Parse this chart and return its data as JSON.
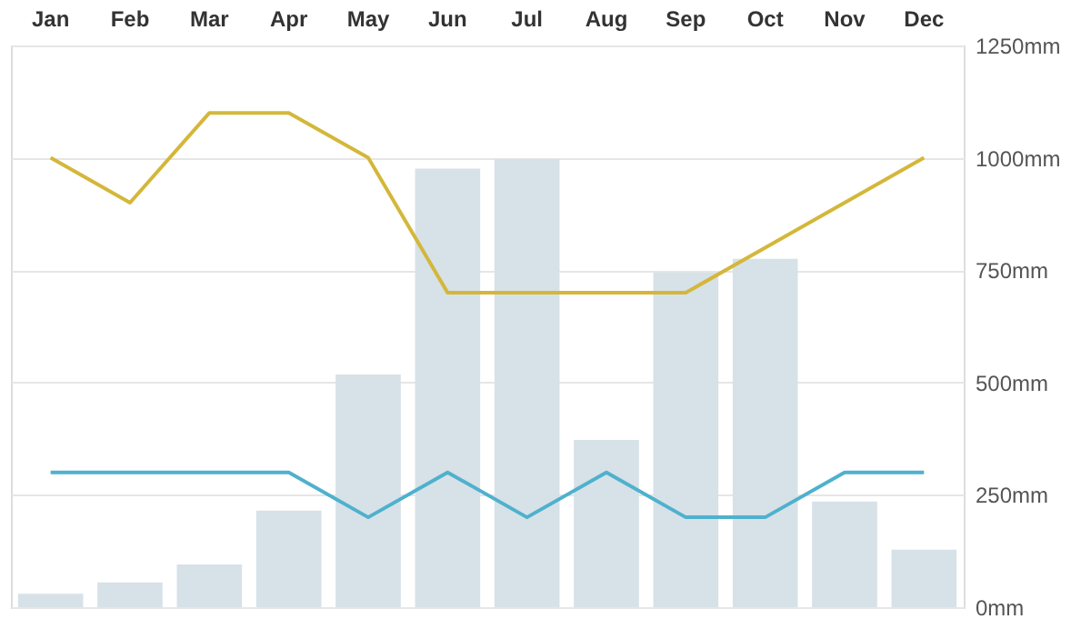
{
  "chart_data": {
    "type": "bar",
    "categories": [
      "Jan",
      "Feb",
      "Mar",
      "Apr",
      "May",
      "Jun",
      "Jul",
      "Aug",
      "Sep",
      "Oct",
      "Nov",
      "Dec"
    ],
    "series": [
      {
        "color": "#d7e1e8",
        "values": [
          30,
          55,
          95,
          215,
          518,
          976,
          997,
          372,
          745,
          775,
          235,
          128
        ]
      },
      {
        "type": "line",
        "color": "#d4b73a",
        "values": [
          1000,
          900,
          1100,
          1100,
          1000,
          700,
          700,
          700,
          700,
          800,
          900,
          1000
        ]
      },
      {
        "type": "line",
        "color": "#4eb1cd",
        "values": [
          300,
          300,
          300,
          300,
          200,
          300,
          200,
          300,
          200,
          200,
          300,
          300
        ]
      }
    ],
    "ylim": [
      0,
      1250
    ],
    "yticks": [
      {
        "value": 0,
        "label": "0mm"
      },
      {
        "value": 250,
        "label": "250mm"
      },
      {
        "value": 500,
        "label": "500mm"
      },
      {
        "value": 750,
        "label": "750mm"
      },
      {
        "value": 1000,
        "label": "1000mm"
      },
      {
        "value": 1250,
        "label": "1250mm"
      }
    ],
    "grid": "y",
    "marker": "none",
    "line_style": "solid"
  }
}
